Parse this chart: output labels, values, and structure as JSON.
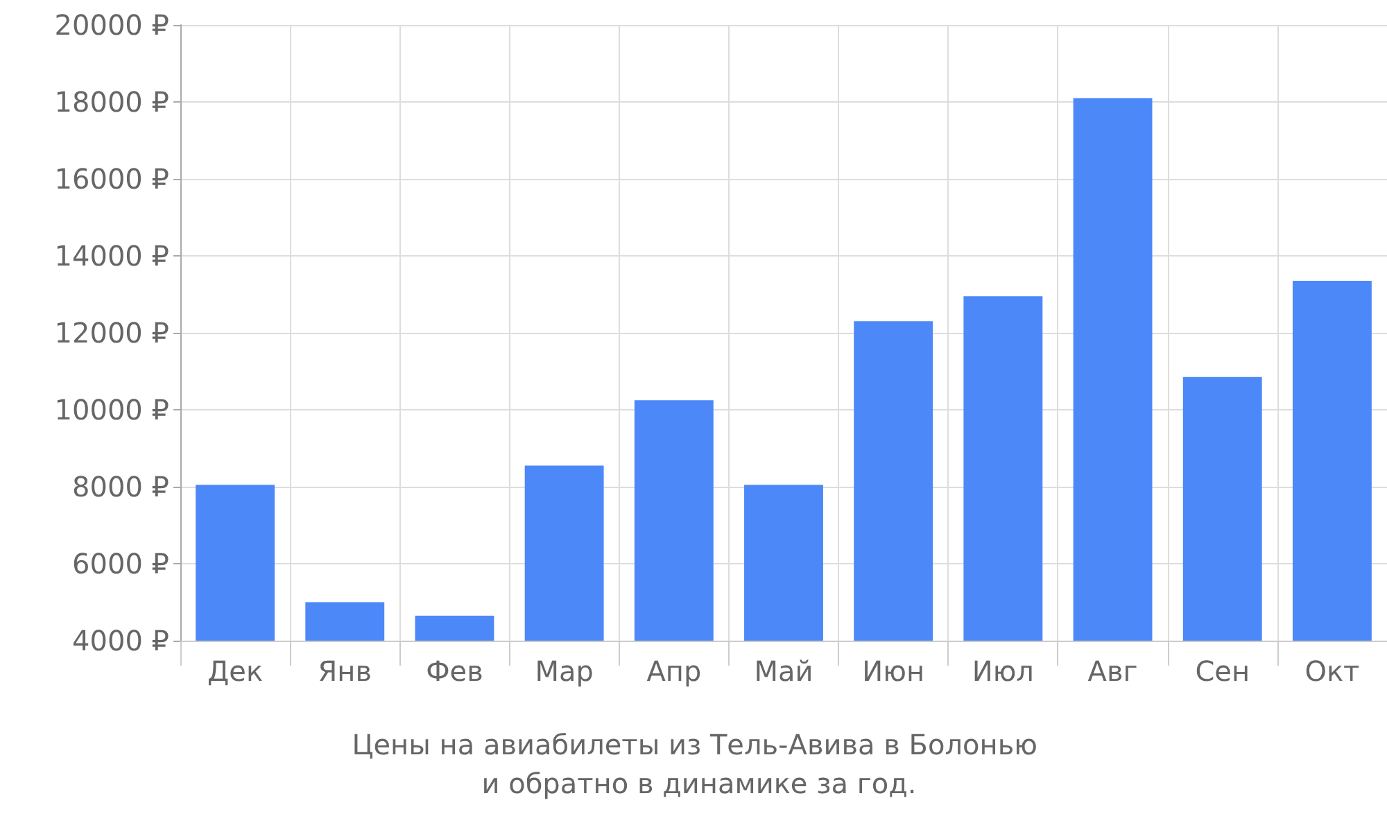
{
  "chart_data": {
    "type": "bar",
    "title": "Цены на авиабилеты из Тель-Авива в Болонью и обратно в динамике за год.",
    "categories": [
      "Дек",
      "Янв",
      "Фев",
      "Мар",
      "Апр",
      "Май",
      "Июн",
      "Июл",
      "Авг",
      "Сен",
      "Окт"
    ],
    "values": [
      8050,
      5000,
      4650,
      8550,
      10250,
      8050,
      12300,
      12950,
      18100,
      10850,
      13350
    ],
    "color": "#4d88f9",
    "ylim": [
      4000,
      20000
    ],
    "yticks": [
      {
        "value": 4000,
        "label": "4000 ₽"
      },
      {
        "value": 6000,
        "label": "6000 ₽"
      },
      {
        "value": 8000,
        "label": "8000 ₽"
      },
      {
        "value": 10000,
        "label": "10000 ₽"
      },
      {
        "value": 12000,
        "label": "12000 ₽"
      },
      {
        "value": 14000,
        "label": "14000 ₽"
      },
      {
        "value": 16000,
        "label": "16000 ₽"
      },
      {
        "value": 18000,
        "label": "18000 ₽"
      },
      {
        "value": 20000,
        "label": "20000 ₽"
      }
    ],
    "grid": true
  }
}
